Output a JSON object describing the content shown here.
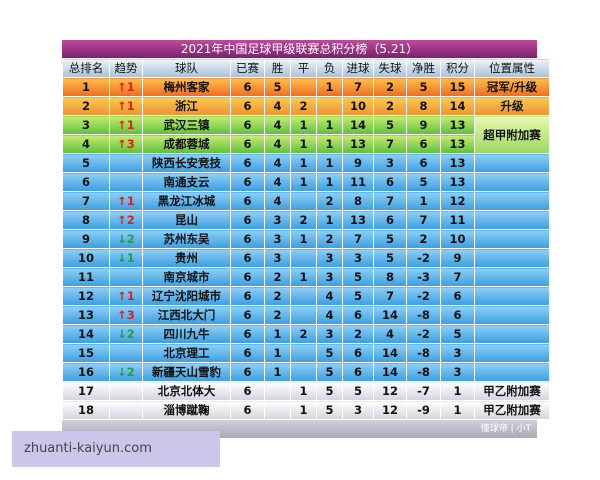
{
  "table": {
    "title": "2021年中国足球甲级联赛总积分榜（5.21）",
    "header": [
      "总排名",
      "趋势",
      "球队",
      "已赛",
      "胜",
      "平",
      "负",
      "进球",
      "失球",
      "净胜",
      "积分",
      "位置属性"
    ],
    "rows": [
      [
        "1",
        "↑1",
        "梅州客家",
        "6",
        "5",
        null,
        "1",
        "7",
        "2",
        "5",
        "15",
        "冠军/升级"
      ],
      [
        "2",
        "↑1",
        "浙江",
        "6",
        "4",
        "2",
        null,
        "10",
        "2",
        "8",
        "14",
        "升级"
      ],
      [
        "3",
        "↑1",
        "武汉三镇",
        "6",
        "4",
        "1",
        "1",
        "14",
        "5",
        "9",
        "13",
        "超甲附加赛"
      ],
      [
        "4",
        "↑3",
        "成都蓉城",
        "6",
        "4",
        "1",
        "1",
        "13",
        "7",
        "6",
        "13",
        null
      ],
      [
        "5",
        null,
        "陕西长安竞技",
        "6",
        "4",
        "1",
        "1",
        "9",
        "3",
        "6",
        "13",
        null
      ],
      [
        "6",
        null,
        "南通支云",
        "6",
        "4",
        "1",
        "1",
        "11",
        "6",
        "5",
        "13",
        null
      ],
      [
        "7",
        "↑1",
        "黑龙江冰城",
        "6",
        "4",
        null,
        "2",
        "8",
        "7",
        "1",
        "12",
        null
      ],
      [
        "8",
        "↑2",
        "昆山",
        "6",
        "3",
        "2",
        "1",
        "13",
        "6",
        "7",
        "11",
        null
      ],
      [
        "9",
        "↓2",
        "苏州东吴",
        "6",
        "3",
        "1",
        "2",
        "7",
        "5",
        "2",
        "10",
        null
      ],
      [
        "10",
        "↓1",
        "贵州",
        "6",
        "3",
        null,
        "3",
        "3",
        "5",
        "-2",
        "9",
        null
      ],
      [
        "11",
        null,
        "南京城市",
        "6",
        "2",
        "1",
        "3",
        "5",
        "8",
        "-3",
        "7",
        null
      ],
      [
        "12",
        "↑1",
        "辽宁沈阳城市",
        "6",
        "2",
        null,
        "4",
        "5",
        "7",
        "-2",
        "6",
        null
      ],
      [
        "13",
        "↑3",
        "江西北大门",
        "6",
        "2",
        null,
        "4",
        "6",
        "14",
        "-8",
        "6",
        null
      ],
      [
        "14",
        "↓2",
        "四川九牛",
        "6",
        "1",
        "2",
        "3",
        "2",
        "4",
        "-2",
        "5",
        null
      ],
      [
        "15",
        null,
        "北京理工",
        "6",
        "1",
        null,
        "5",
        "6",
        "14",
        "-8",
        "3",
        null
      ],
      [
        "16",
        "↓2",
        "新疆天山雪豹",
        "6",
        "1",
        null,
        "5",
        "6",
        "14",
        "-8",
        "3",
        null
      ],
      [
        "17",
        null,
        "北京北体大",
        "6",
        null,
        "1",
        "5",
        "5",
        "12",
        "-7",
        "1",
        "甲乙附加赛"
      ],
      [
        "18",
        null,
        "淄博蹴鞠",
        "6",
        null,
        "1",
        "5",
        "3",
        "12",
        "-9",
        "1",
        "甲乙附加赛"
      ]
    ],
    "footer_mark": "懂球帝 | 小T"
  },
  "watermark": "zhuanti-kaiyun.com"
}
